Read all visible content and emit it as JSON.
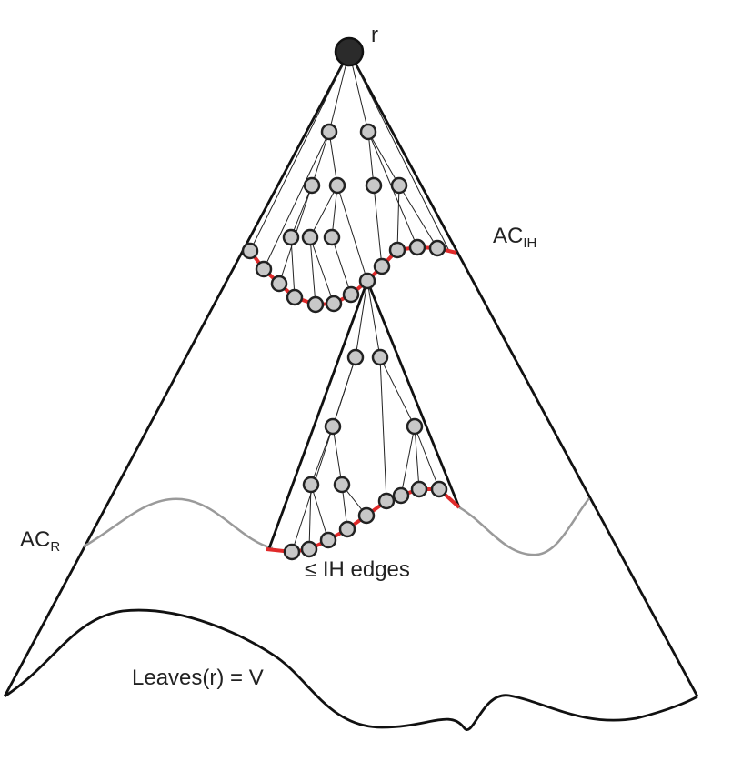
{
  "labels": {
    "root": "r",
    "ac_ih_main": "AC",
    "ac_ih_sub": "IH",
    "ac_r_main": "AC",
    "ac_r_sub": "R",
    "ih_edges": "≤ IH edges",
    "leaves": "Leaves(r) = V"
  },
  "colors": {
    "cut_edges": "#e02a2a",
    "ac_r_curve": "#9a9a9a",
    "node_fill": "#c8c8c8",
    "root_fill": "#2b2b2b",
    "outline": "#111111"
  }
}
